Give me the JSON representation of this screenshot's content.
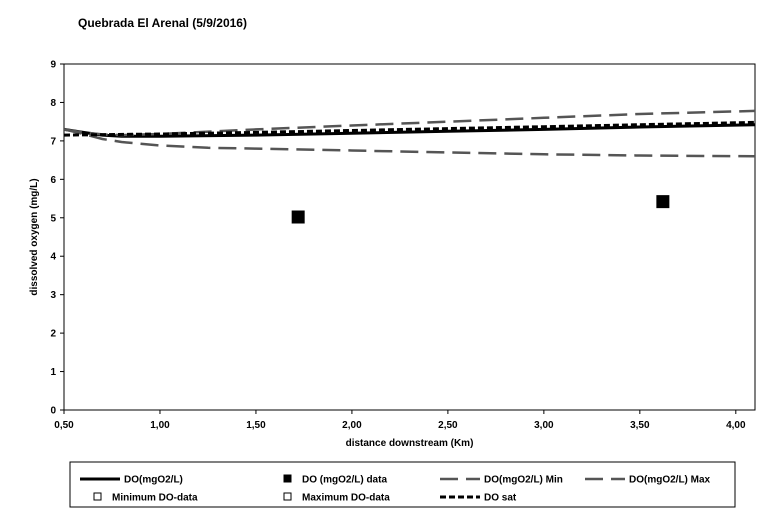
{
  "chart_data": {
    "type": "line",
    "title": "Quebrada El Arenal (5/9/2016)",
    "xlabel": "distance downstream (Km)",
    "ylabel": "dissolved oxygen (mg/L)",
    "xlim": [
      0.5,
      4.1
    ],
    "ylim": [
      0,
      9
    ],
    "x_ticks": [
      "0,50",
      "1,00",
      "1,50",
      "2,00",
      "2,50",
      "3,00",
      "3,50",
      "4,00"
    ],
    "x_tick_values": [
      0.5,
      1.0,
      1.5,
      2.0,
      2.5,
      3.0,
      3.5,
      4.0
    ],
    "y_ticks": [
      "0",
      "1",
      "2",
      "3",
      "4",
      "5",
      "6",
      "7",
      "8",
      "9"
    ],
    "y_tick_values": [
      0,
      1,
      2,
      3,
      4,
      5,
      6,
      7,
      8,
      9
    ],
    "grid": false,
    "legend_position": "bottom",
    "series": [
      {
        "name": "DO(mgO2/L)",
        "style": "solid-thick",
        "color": "#000000",
        "x": [
          0.5,
          0.6,
          0.7,
          0.8,
          1.0,
          1.5,
          2.0,
          2.5,
          3.0,
          3.5,
          4.1
        ],
        "y": [
          7.3,
          7.22,
          7.15,
          7.12,
          7.12,
          7.15,
          7.2,
          7.25,
          7.3,
          7.36,
          7.42
        ]
      },
      {
        "name": "DO (mgO2/L) data",
        "style": "marker-square",
        "color": "#000000",
        "x": [
          1.72,
          3.62
        ],
        "y": [
          5.02,
          5.42
        ]
      },
      {
        "name": "DO(mgO2/L) Min",
        "style": "dash-long",
        "color": "#555555",
        "x": [
          0.5,
          0.6,
          0.7,
          0.8,
          1.0,
          1.25,
          1.5,
          2.0,
          2.5,
          3.0,
          3.5,
          4.1
        ],
        "y": [
          7.3,
          7.18,
          7.05,
          6.97,
          6.88,
          6.82,
          6.8,
          6.75,
          6.7,
          6.65,
          6.62,
          6.6
        ]
      },
      {
        "name": "DO(mgO2/L) Max",
        "style": "dash-long",
        "color": "#555555",
        "x": [
          0.5,
          0.6,
          0.7,
          0.8,
          1.0,
          1.5,
          2.0,
          2.5,
          3.0,
          3.5,
          4.1
        ],
        "y": [
          7.3,
          7.22,
          7.17,
          7.15,
          7.18,
          7.3,
          7.4,
          7.5,
          7.6,
          7.7,
          7.78
        ]
      },
      {
        "name": "Minimum DO-data",
        "style": "marker-open-square",
        "color": "#000000",
        "x": [],
        "y": []
      },
      {
        "name": "Maximum DO-data",
        "style": "marker-open-square",
        "color": "#000000",
        "x": [],
        "y": []
      },
      {
        "name": "DO sat",
        "style": "dash-short",
        "color": "#000000",
        "x": [
          0.5,
          1.0,
          1.5,
          2.0,
          2.5,
          3.0,
          3.5,
          4.1
        ],
        "y": [
          7.15,
          7.18,
          7.22,
          7.27,
          7.32,
          7.37,
          7.42,
          7.48
        ]
      }
    ]
  }
}
